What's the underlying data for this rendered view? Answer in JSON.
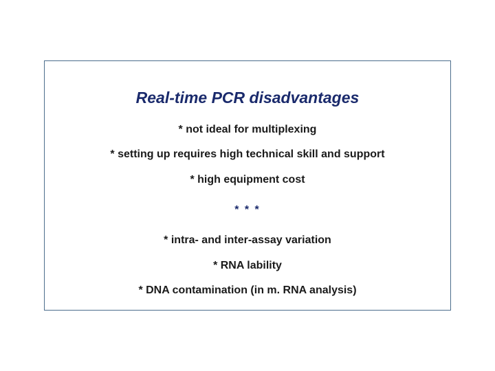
{
  "colors": {
    "background": "#ffffff",
    "border": "#4a6c8c",
    "title_color": "#1a2a6c",
    "bullet_color": "#1a1a1a",
    "divider_color": "#1a2a6c"
  },
  "slide": {
    "title": "Real-time PCR disadvantages",
    "bullets_top": [
      "* not ideal for multiplexing",
      "* setting up requires high technical skill and support",
      "* high equipment cost"
    ],
    "divider": "* * *",
    "bullets_bottom": [
      "* intra- and inter-assay variation",
      "* RNA lability",
      "* DNA contamination (in m. RNA analysis)"
    ]
  },
  "typography": {
    "title_fontsize": 23,
    "bullet_fontsize": 16,
    "font_family": "Verdana"
  }
}
